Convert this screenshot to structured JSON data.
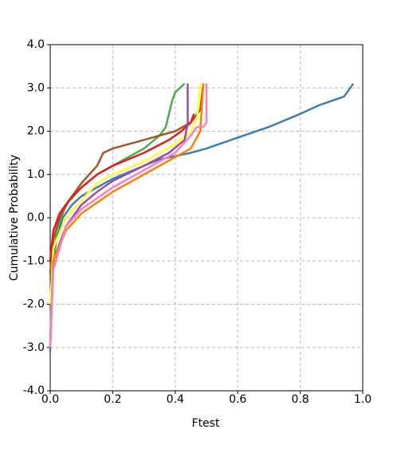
{
  "chart_data": {
    "type": "line",
    "xlabel": "Ftest",
    "ylabel": "Cumulative Probability",
    "xlim": [
      0,
      1
    ],
    "ylim": [
      -4,
      4
    ],
    "grid": true,
    "xticks": [
      {
        "value": 0,
        "label": "0.0"
      },
      {
        "value": 0.2,
        "label": "0.2"
      },
      {
        "value": 0.4,
        "label": "0.4"
      },
      {
        "value": 0.6,
        "label": "0.6"
      },
      {
        "value": 0.8,
        "label": "0.8"
      },
      {
        "value": 1,
        "label": "1.0"
      }
    ],
    "yticks": [
      {
        "value": -4,
        "label": "-4.0"
      },
      {
        "value": -3,
        "label": "-3.0"
      },
      {
        "value": -2,
        "label": "-2.0"
      },
      {
        "value": -1,
        "label": "-1.0"
      },
      {
        "value": 0,
        "label": "0.0"
      },
      {
        "value": 1,
        "label": "1.0"
      },
      {
        "value": 2,
        "label": "2.0"
      },
      {
        "value": 3,
        "label": "3.0"
      },
      {
        "value": 4,
        "label": "4.0"
      }
    ],
    "series": [
      {
        "color": "#3a7fb0",
        "x": [
          0,
          0.003,
          0.01,
          0.02,
          0.04,
          0.07,
          0.1,
          0.15,
          0.2,
          0.25,
          0.3,
          0.35,
          0.45,
          0.5,
          0.6,
          0.7,
          0.8,
          0.86,
          0.94,
          0.97
        ],
        "values": [
          -3.1,
          -2,
          -1,
          -0.5,
          0,
          0.3,
          0.5,
          0.7,
          0.9,
          1.05,
          1.2,
          1.35,
          1.5,
          1.6,
          1.85,
          2.1,
          2.4,
          2.6,
          2.8,
          3.1
        ]
      },
      {
        "color": "#4daf4a",
        "x": [
          0,
          0.005,
          0.02,
          0.05,
          0.1,
          0.15,
          0.2,
          0.25,
          0.3,
          0.35,
          0.37,
          0.39,
          0.4,
          0.43
        ],
        "values": [
          -3,
          -1.5,
          -0.3,
          0.3,
          0.7,
          1.0,
          1.2,
          1.4,
          1.6,
          1.9,
          2.1,
          2.7,
          2.9,
          3.1
        ]
      },
      {
        "color": "#a65628",
        "x": [
          0,
          0.01,
          0.03,
          0.06,
          0.1,
          0.15,
          0.17,
          0.2,
          0.3,
          0.4,
          0.45,
          0.48,
          0.49
        ],
        "values": [
          -1.3,
          -0.5,
          0,
          0.4,
          0.8,
          1.2,
          1.5,
          1.6,
          1.8,
          2.0,
          2.2,
          2.5,
          3.1
        ]
      },
      {
        "color": "#e41a1c",
        "x": [
          0,
          0.01,
          0.03,
          0.06,
          0.1,
          0.15,
          0.2,
          0.3,
          0.38,
          0.42,
          0.45,
          0.46
        ],
        "values": [
          -1,
          -0.3,
          0.1,
          0.4,
          0.7,
          1.0,
          1.2,
          1.5,
          1.8,
          2.0,
          2.2,
          2.4
        ]
      },
      {
        "color": "#ffff33",
        "x": [
          0,
          0.01,
          0.05,
          0.1,
          0.15,
          0.2,
          0.3,
          0.4,
          0.45,
          0.47,
          0.48
        ],
        "values": [
          -2,
          -0.7,
          0,
          0.4,
          0.8,
          1.0,
          1.3,
          1.7,
          2.0,
          2.3,
          3.1
        ]
      },
      {
        "color": "#984ea3",
        "x": [
          0,
          0.01,
          0.05,
          0.1,
          0.15,
          0.2,
          0.3,
          0.38,
          0.43,
          0.44,
          0.44
        ],
        "values": [
          -3,
          -1,
          -0.2,
          0.3,
          0.6,
          0.85,
          1.2,
          1.5,
          1.8,
          2.2,
          3.1
        ]
      },
      {
        "color": "#ff7f00",
        "x": [
          0,
          0.01,
          0.05,
          0.1,
          0.2,
          0.3,
          0.35,
          0.4,
          0.45,
          0.48,
          0.49
        ],
        "values": [
          -3,
          -1,
          -0.3,
          0.1,
          0.6,
          1.0,
          1.2,
          1.4,
          1.6,
          2.0,
          3.1
        ]
      },
      {
        "color": "#f781bf",
        "x": [
          0,
          0.01,
          0.05,
          0.1,
          0.2,
          0.3,
          0.4,
          0.45,
          0.47,
          0.49,
          0.5,
          0.5
        ],
        "values": [
          -3,
          -1.2,
          -0.2,
          0.2,
          0.7,
          1.1,
          1.5,
          1.9,
          2.1,
          2.1,
          2.2,
          3.1
        ]
      }
    ]
  }
}
